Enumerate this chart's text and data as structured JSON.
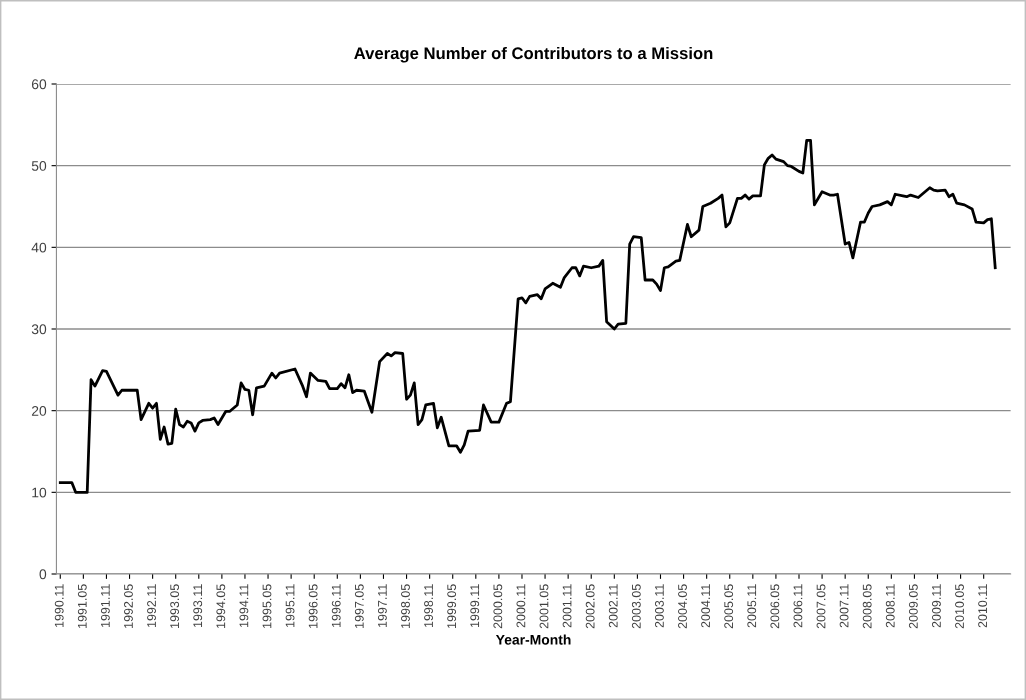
{
  "chart_data": {
    "type": "line",
    "title": "Average Number of Contributors to a Mission",
    "xlabel": "Year-Month",
    "x": [
      "1990-11",
      "1991-02",
      "1991-03",
      "1991-06",
      "1991-07",
      "1991-08",
      "1991-10",
      "1991-11",
      "1992-02",
      "1992-03",
      "1992-07",
      "1992-08",
      "1992-10",
      "1992-11",
      "1992-12",
      "1993-01",
      "1993-02",
      "1993-03",
      "1993-04",
      "1993-05",
      "1993-06",
      "1993-07",
      "1993-08",
      "1993-09",
      "1993-10",
      "1993-11",
      "1993-12",
      "1994-02",
      "1994-03",
      "1994-04",
      "1994-06",
      "1994-07",
      "1994-09",
      "1994-10",
      "1994-11",
      "1994-12",
      "1995-01",
      "1995-02",
      "1995-04",
      "1995-06",
      "1995-07",
      "1995-08",
      "1995-12",
      "1996-02",
      "1996-03",
      "1996-04",
      "1996-06",
      "1996-08",
      "1996-09",
      "1996-11",
      "1996-12",
      "1997-01",
      "1997-02",
      "1997-03",
      "1997-04",
      "1997-06",
      "1997-07",
      "1997-08",
      "1997-10",
      "1997-12",
      "1998-01",
      "1998-02",
      "1998-04",
      "1998-05",
      "1998-06",
      "1998-07",
      "1998-08",
      "1998-09",
      "1998-10",
      "1998-12",
      "1999-01",
      "1999-02",
      "1999-04",
      "1999-06",
      "1999-07",
      "1999-08",
      "1999-09",
      "1999-12",
      "2000-01",
      "2000-03",
      "2000-05",
      "2000-07",
      "2000-08",
      "2000-10",
      "2000-11",
      "2000-12",
      "2001-01",
      "2001-03",
      "2001-04",
      "2001-05",
      "2001-07",
      "2001-09",
      "2001-10",
      "2001-12",
      "2002-01",
      "2002-02",
      "2002-03",
      "2002-05",
      "2002-07",
      "2002-08",
      "2002-09",
      "2002-11",
      "2002-12",
      "2003-02",
      "2003-03",
      "2003-04",
      "2003-06",
      "2003-07",
      "2003-09",
      "2003-10",
      "2003-11",
      "2003-12",
      "2004-01",
      "2004-03",
      "2004-04",
      "2004-06",
      "2004-07",
      "2004-09",
      "2004-10",
      "2004-12",
      "2005-02",
      "2005-03",
      "2005-04",
      "2005-05",
      "2005-07",
      "2005-08",
      "2005-09",
      "2005-10",
      "2005-11",
      "2006-01",
      "2006-02",
      "2006-03",
      "2006-04",
      "2006-05",
      "2006-07",
      "2006-08",
      "2006-09",
      "2006-11",
      "2006-12",
      "2007-01",
      "2007-02",
      "2007-03",
      "2007-05",
      "2007-07",
      "2007-08",
      "2007-09",
      "2007-11",
      "2007-12",
      "2008-01",
      "2008-03",
      "2008-04",
      "2008-05",
      "2008-06",
      "2008-08",
      "2008-10",
      "2008-11",
      "2008-12",
      "2009-02",
      "2009-03",
      "2009-04",
      "2009-06",
      "2009-07",
      "2009-09",
      "2009-10",
      "2009-11",
      "2010-01",
      "2010-02",
      "2010-03",
      "2010-04",
      "2010-06",
      "2010-08",
      "2010-09",
      "2010-11",
      "2010-12",
      "2011-01",
      "2011-02"
    ],
    "series": [
      {
        "color": "#000000",
        "values": [
          11.2,
          11.2,
          10.0,
          10.0,
          23.8,
          23.0,
          24.9,
          24.8,
          21.9,
          22.5,
          22.5,
          18.9,
          20.9,
          20.3,
          20.9,
          16.5,
          18.0,
          15.9,
          16.0,
          20.2,
          18.3,
          18.0,
          18.7,
          18.5,
          17.5,
          18.5,
          18.8,
          18.9,
          19.1,
          18.3,
          19.9,
          19.9,
          20.7,
          23.4,
          22.6,
          22.5,
          19.5,
          22.8,
          23.0,
          24.6,
          24.0,
          24.6,
          25.1,
          23.0,
          21.7,
          24.6,
          23.7,
          23.6,
          22.7,
          22.7,
          23.3,
          22.8,
          24.4,
          22.2,
          22.5,
          22.4,
          21.1,
          19.8,
          26.0,
          27.0,
          26.7,
          27.1,
          27.0,
          21.4,
          21.9,
          23.4,
          18.3,
          18.9,
          20.7,
          20.9,
          17.9,
          19.2,
          15.7,
          15.7,
          14.9,
          15.8,
          17.5,
          17.6,
          20.7,
          18.6,
          18.6,
          20.9,
          21.1,
          33.7,
          33.8,
          33.2,
          34.0,
          34.2,
          33.7,
          34.9,
          35.6,
          35.1,
          36.3,
          37.5,
          37.5,
          36.5,
          37.7,
          37.5,
          37.7,
          38.4,
          30.9,
          30.0,
          30.6,
          30.7,
          40.4,
          41.3,
          41.2,
          36.0,
          36.0,
          35.5,
          34.7,
          37.5,
          37.6,
          38.3,
          38.4,
          42.8,
          41.3,
          42.1,
          45.0,
          45.4,
          46.0,
          46.4,
          42.5,
          43.0,
          46.0,
          46.0,
          46.4,
          45.9,
          46.3,
          46.3,
          50.1,
          50.9,
          51.3,
          50.8,
          50.5,
          50.0,
          49.9,
          49.3,
          49.1,
          53.1,
          53.1,
          45.2,
          46.8,
          46.4,
          46.4,
          46.5,
          40.4,
          40.6,
          38.7,
          43.1,
          43.1,
          44.2,
          45.0,
          45.2,
          45.6,
          45.2,
          46.5,
          46.3,
          46.2,
          46.4,
          46.1,
          46.5,
          47.3,
          47.0,
          46.9,
          47.0,
          46.2,
          46.5,
          45.4,
          45.2,
          44.7,
          43.1,
          43.0,
          43.4,
          43.5,
          37.5
        ]
      }
    ],
    "xlim": [
      "1990-10",
      "2011-06"
    ],
    "xticks": [
      {
        "value": "1990-11",
        "label": "1990.11"
      },
      {
        "value": "1991-05",
        "label": "1991.05"
      },
      {
        "value": "1991-11",
        "label": "1991.11"
      },
      {
        "value": "1992-05",
        "label": "1992.05"
      },
      {
        "value": "1992-11",
        "label": "1992.11"
      },
      {
        "value": "1993-05",
        "label": "1993.05"
      },
      {
        "value": "1993-11",
        "label": "1993.11"
      },
      {
        "value": "1994-05",
        "label": "1994.05"
      },
      {
        "value": "1994-11",
        "label": "1994.11"
      },
      {
        "value": "1995-05",
        "label": "1995.05"
      },
      {
        "value": "1995-11",
        "label": "1995.11"
      },
      {
        "value": "1996-05",
        "label": "1996.05"
      },
      {
        "value": "1996-11",
        "label": "1996.11"
      },
      {
        "value": "1997-05",
        "label": "1997.05"
      },
      {
        "value": "1997-11",
        "label": "1997.11"
      },
      {
        "value": "1998-05",
        "label": "1998.05"
      },
      {
        "value": "1998-11",
        "label": "1998.11"
      },
      {
        "value": "1999-05",
        "label": "1999.05"
      },
      {
        "value": "1999-11",
        "label": "1999.11"
      },
      {
        "value": "2000-05",
        "label": "2000.05"
      },
      {
        "value": "2000-11",
        "label": "2000.11"
      },
      {
        "value": "2001-05",
        "label": "2001.05"
      },
      {
        "value": "2001-11",
        "label": "2001.11"
      },
      {
        "value": "2002-05",
        "label": "2002.05"
      },
      {
        "value": "2002-11",
        "label": "2002.11"
      },
      {
        "value": "2003-05",
        "label": "2003.05"
      },
      {
        "value": "2003-11",
        "label": "2003.11"
      },
      {
        "value": "2004-05",
        "label": "2004.05"
      },
      {
        "value": "2004-11",
        "label": "2004.11"
      },
      {
        "value": "2005-05",
        "label": "2005.05"
      },
      {
        "value": "2005-11",
        "label": "2005.11"
      },
      {
        "value": "2006-05",
        "label": "2006.05"
      },
      {
        "value": "2006-11",
        "label": "2006.11"
      },
      {
        "value": "2007-05",
        "label": "2007.05"
      },
      {
        "value": "2007-11",
        "label": "2007.11"
      },
      {
        "value": "2008-05",
        "label": "2008.05"
      },
      {
        "value": "2008-11",
        "label": "2008.11"
      },
      {
        "value": "2009-05",
        "label": "2009.05"
      },
      {
        "value": "2009-11",
        "label": "2009.11"
      },
      {
        "value": "2010-05",
        "label": "2010.05"
      },
      {
        "value": "2010-11",
        "label": "2010.11"
      }
    ],
    "ylim": [
      0,
      60
    ],
    "yticks": [
      0,
      10,
      20,
      30,
      40,
      50,
      60
    ],
    "grid": "y",
    "marker": "none",
    "line_style": "solid"
  }
}
